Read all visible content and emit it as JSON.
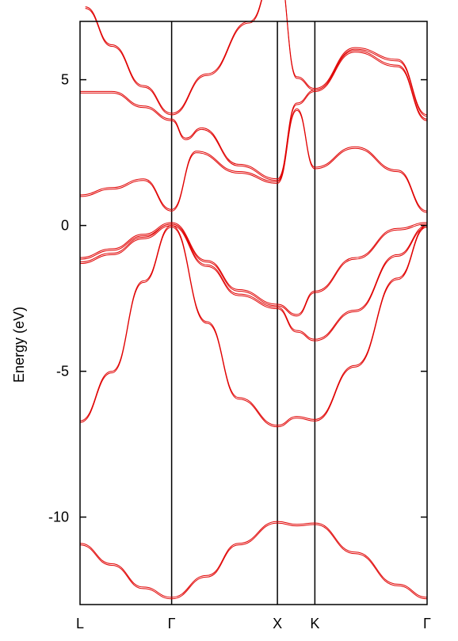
{
  "chart_data": {
    "type": "line",
    "title": "",
    "xlabel": "",
    "ylabel": "Energy (eV)",
    "ylim": [
      -13,
      7
    ],
    "y_ticks": [
      5,
      0,
      -5,
      -10
    ],
    "y_tick_labels": [
      "5",
      "0",
      "-5",
      "-10"
    ],
    "x_ticks": [
      "L",
      "Γ",
      "X",
      "K",
      "Γ"
    ],
    "x_tick_positions": [
      0,
      0.866,
      1.866,
      2.22,
      3.281
    ],
    "xlim": [
      0,
      3.281
    ],
    "grid": false,
    "legend": "none",
    "line_color": "#e00000",
    "series": [
      {
        "x": [
          0,
          0.3,
          0.6,
          0.866,
          1.2,
          1.5,
          1.866,
          2.05,
          2.22,
          2.6,
          3.0,
          3.281
        ],
        "values": [
          -10.9,
          -11.6,
          -12.4,
          -12.75,
          -12.0,
          -10.9,
          -10.15,
          -10.25,
          -10.2,
          -11.2,
          -12.3,
          -12.75
        ]
      },
      {
        "x": [
          0,
          0.3,
          0.6,
          0.866,
          1.2,
          1.5,
          1.866,
          2.05,
          2.22,
          2.6,
          3.0,
          3.281
        ],
        "values": [
          -6.7,
          -5.0,
          -1.9,
          0.0,
          -3.3,
          -5.9,
          -6.85,
          -6.55,
          -6.65,
          -4.8,
          -1.8,
          0.0
        ]
      },
      {
        "x": [
          0,
          0.3,
          0.6,
          0.866,
          1.2,
          1.5,
          1.866,
          2.05,
          2.22,
          2.6,
          3.0,
          3.281
        ],
        "values": [
          -1.1,
          -0.8,
          -0.3,
          0.1,
          -1.2,
          -2.2,
          -2.7,
          -3.05,
          -2.25,
          -1.1,
          -0.1,
          0.1
        ]
      },
      {
        "x": [
          0,
          0.3,
          0.6,
          0.866,
          1.2,
          1.5,
          1.866,
          2.05,
          2.22,
          2.6,
          3.0,
          3.281
        ],
        "values": [
          -1.25,
          -0.95,
          -0.4,
          0.05,
          -1.35,
          -2.35,
          -2.8,
          -3.6,
          -3.9,
          -2.9,
          -1.0,
          0.0
        ]
      },
      {
        "x": [
          0,
          0.3,
          0.6,
          0.866,
          1.1,
          1.5,
          1.866,
          2.05,
          2.22,
          2.6,
          3.0,
          3.281
        ],
        "values": [
          1.05,
          1.3,
          1.6,
          0.55,
          2.55,
          1.85,
          1.5,
          4.0,
          2.0,
          2.7,
          1.9,
          0.5
        ]
      },
      {
        "x": [
          0,
          0.3,
          0.6,
          0.866,
          1.0,
          1.15,
          1.5,
          1.866,
          2.05,
          2.22,
          2.6,
          3.0,
          3.281
        ],
        "values": [
          4.6,
          4.6,
          4.1,
          3.65,
          3.0,
          3.35,
          2.1,
          1.6,
          4.2,
          4.65,
          6.0,
          5.5,
          3.65
        ]
      },
      {
        "x": [
          0.05,
          0.3,
          0.6,
          0.866,
          1.2,
          1.6,
          1.866,
          2.05,
          2.22,
          2.6,
          3.0,
          3.281
        ],
        "values": [
          7.5,
          6.2,
          4.8,
          3.85,
          5.2,
          7.0,
          9.0,
          5.1,
          4.7,
          6.1,
          5.7,
          3.8
        ]
      }
    ]
  }
}
